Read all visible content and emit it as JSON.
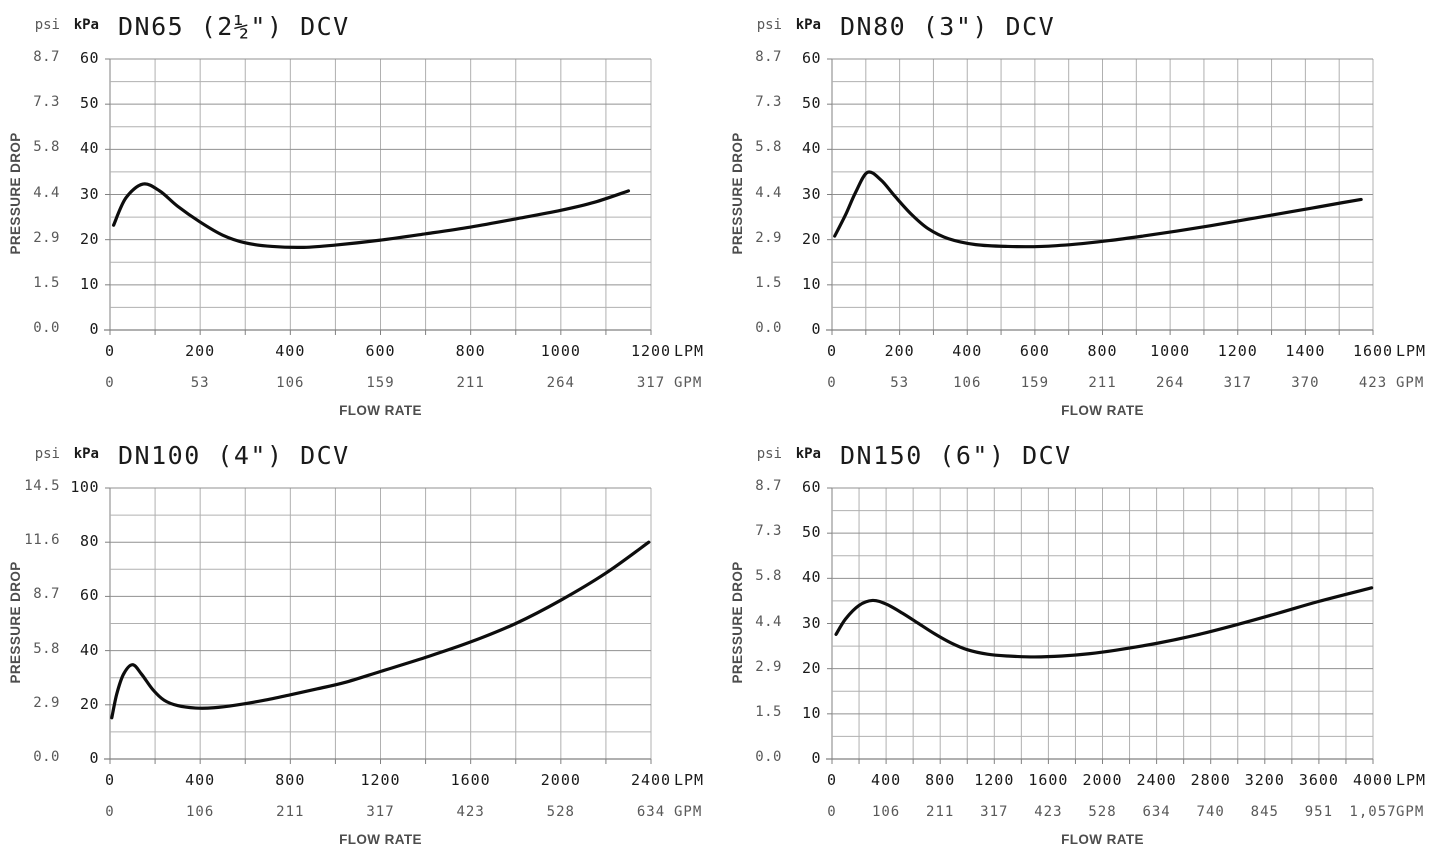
{
  "page": {
    "background": "#ffffff"
  },
  "colors": {
    "curve": "#0d0d0d",
    "grid_minor": "#b0b0b0",
    "grid_major": "#909090",
    "axis": "#808080",
    "text_dark": "#1a1a1a",
    "text_gray": "#595959"
  },
  "chart_data": [
    {
      "id": "dn65",
      "type": "line",
      "title": "DN65 (2½\") DCV",
      "ylabel": "PRESSURE DROP",
      "xlabel": "FLOW RATE",
      "y_axis": {
        "unit_secondary": "psi",
        "unit_primary": "kPa",
        "max": 60,
        "minor_step": 5,
        "major_step": 10,
        "ticks": [
          {
            "v": 0,
            "kpa": "0",
            "psi": "0.0"
          },
          {
            "v": 10,
            "kpa": "10",
            "psi": "1.5"
          },
          {
            "v": 20,
            "kpa": "20",
            "psi": "2.9"
          },
          {
            "v": 30,
            "kpa": "30",
            "psi": "4.4"
          },
          {
            "v": 40,
            "kpa": "40",
            "psi": "5.8"
          },
          {
            "v": 50,
            "kpa": "50",
            "psi": "7.3"
          },
          {
            "v": 60,
            "kpa": "60",
            "psi": "8.7"
          }
        ]
      },
      "x_axis": {
        "unit_primary": "LPM",
        "unit_secondary": "GPM",
        "max": 1200,
        "minor_step": 100,
        "ticks": [
          {
            "v": 0,
            "lpm": "0",
            "gpm": "0"
          },
          {
            "v": 200,
            "lpm": "200",
            "gpm": "53"
          },
          {
            "v": 400,
            "lpm": "400",
            "gpm": "106"
          },
          {
            "v": 600,
            "lpm": "600",
            "gpm": "159"
          },
          {
            "v": 800,
            "lpm": "800",
            "gpm": "211"
          },
          {
            "v": 1000,
            "lpm": "1000",
            "gpm": "264"
          },
          {
            "v": 1200,
            "lpm": "1200",
            "gpm": "317"
          }
        ]
      },
      "series": [
        {
          "name": "pressure-drop-curve",
          "points_lpm_kpa": [
            [
              8,
              23.2
            ],
            [
              35,
              29.2
            ],
            [
              73,
              32.3
            ],
            [
              110,
              30.8
            ],
            [
              150,
              27.4
            ],
            [
              200,
              23.9
            ],
            [
              250,
              21.0
            ],
            [
              300,
              19.3
            ],
            [
              360,
              18.5
            ],
            [
              430,
              18.3
            ],
            [
              500,
              18.8
            ],
            [
              600,
              19.9
            ],
            [
              700,
              21.3
            ],
            [
              800,
              22.8
            ],
            [
              900,
              24.6
            ],
            [
              1000,
              26.5
            ],
            [
              1075,
              28.3
            ],
            [
              1150,
              30.8
            ]
          ]
        }
      ]
    },
    {
      "id": "dn80",
      "type": "line",
      "title": "DN80 (3\") DCV",
      "ylabel": "PRESSURE DROP",
      "xlabel": "FLOW RATE",
      "y_axis": {
        "unit_secondary": "psi",
        "unit_primary": "kPa",
        "max": 60,
        "minor_step": 5,
        "major_step": 10,
        "ticks": [
          {
            "v": 0,
            "kpa": "0",
            "psi": "0.0"
          },
          {
            "v": 10,
            "kpa": "10",
            "psi": "1.5"
          },
          {
            "v": 20,
            "kpa": "20",
            "psi": "2.9"
          },
          {
            "v": 30,
            "kpa": "30",
            "psi": "4.4"
          },
          {
            "v": 40,
            "kpa": "40",
            "psi": "5.8"
          },
          {
            "v": 50,
            "kpa": "50",
            "psi": "7.3"
          },
          {
            "v": 60,
            "kpa": "60",
            "psi": "8.7"
          }
        ]
      },
      "x_axis": {
        "unit_primary": "LPM",
        "unit_secondary": "GPM",
        "max": 1600,
        "minor_step": 100,
        "ticks": [
          {
            "v": 0,
            "lpm": "0",
            "gpm": "0"
          },
          {
            "v": 200,
            "lpm": "200",
            "gpm": "53"
          },
          {
            "v": 400,
            "lpm": "400",
            "gpm": "106"
          },
          {
            "v": 600,
            "lpm": "600",
            "gpm": "159"
          },
          {
            "v": 800,
            "lpm": "800",
            "gpm": "211"
          },
          {
            "v": 1000,
            "lpm": "1000",
            "gpm": "264"
          },
          {
            "v": 1200,
            "lpm": "1200",
            "gpm": "317"
          },
          {
            "v": 1400,
            "lpm": "1400",
            "gpm": "370"
          },
          {
            "v": 1600,
            "lpm": "1600",
            "gpm": "423"
          }
        ]
      },
      "series": [
        {
          "name": "pressure-drop-curve",
          "points_lpm_kpa": [
            [
              8,
              20.8
            ],
            [
              40,
              25.5
            ],
            [
              70,
              30.5
            ],
            [
              105,
              34.9
            ],
            [
              145,
              33.2
            ],
            [
              185,
              29.7
            ],
            [
              235,
              25.6
            ],
            [
              285,
              22.4
            ],
            [
              345,
              20.2
            ],
            [
              425,
              18.9
            ],
            [
              520,
              18.5
            ],
            [
              620,
              18.5
            ],
            [
              720,
              19.0
            ],
            [
              820,
              19.8
            ],
            [
              920,
              20.8
            ],
            [
              1020,
              21.9
            ],
            [
              1120,
              23.1
            ],
            [
              1220,
              24.4
            ],
            [
              1320,
              25.7
            ],
            [
              1420,
              27.0
            ],
            [
              1510,
              28.2
            ],
            [
              1565,
              28.9
            ]
          ]
        }
      ]
    },
    {
      "id": "dn100",
      "type": "line",
      "title": "DN100 (4\") DCV",
      "ylabel": "PRESSURE DROP",
      "xlabel": "FLOW RATE",
      "y_axis": {
        "unit_secondary": "psi",
        "unit_primary": "kPa",
        "max": 100,
        "minor_step": 10,
        "major_step": 20,
        "ticks": [
          {
            "v": 0,
            "kpa": "0",
            "psi": "0.0"
          },
          {
            "v": 20,
            "kpa": "20",
            "psi": "2.9"
          },
          {
            "v": 40,
            "kpa": "40",
            "psi": "5.8"
          },
          {
            "v": 60,
            "kpa": "60",
            "psi": "8.7"
          },
          {
            "v": 80,
            "kpa": "80",
            "psi": "11.6"
          },
          {
            "v": 100,
            "kpa": "100",
            "psi": "14.5"
          }
        ]
      },
      "x_axis": {
        "unit_primary": "LPM",
        "unit_secondary": "GPM",
        "max": 2400,
        "minor_step": 200,
        "ticks": [
          {
            "v": 0,
            "lpm": "0",
            "gpm": "0"
          },
          {
            "v": 400,
            "lpm": "400",
            "gpm": "106"
          },
          {
            "v": 800,
            "lpm": "800",
            "gpm": "211"
          },
          {
            "v": 1200,
            "lpm": "1200",
            "gpm": "317"
          },
          {
            "v": 1600,
            "lpm": "1600",
            "gpm": "423"
          },
          {
            "v": 2000,
            "lpm": "2000",
            "gpm": "528"
          },
          {
            "v": 2400,
            "lpm": "2400",
            "gpm": "634"
          }
        ]
      },
      "series": [
        {
          "name": "pressure-drop-curve",
          "points_lpm_kpa": [
            [
              8,
              15.2
            ],
            [
              30,
              24.0
            ],
            [
              60,
              31.3
            ],
            [
              100,
              34.8
            ],
            [
              140,
              31.3
            ],
            [
              190,
              25.6
            ],
            [
              240,
              21.7
            ],
            [
              300,
              19.7
            ],
            [
              380,
              18.8
            ],
            [
              460,
              18.9
            ],
            [
              560,
              19.9
            ],
            [
              680,
              21.6
            ],
            [
              800,
              23.7
            ],
            [
              920,
              25.9
            ],
            [
              1040,
              28.2
            ],
            [
              1200,
              32.3
            ],
            [
              1400,
              37.5
            ],
            [
              1600,
              43.2
            ],
            [
              1800,
              50.0
            ],
            [
              2000,
              58.6
            ],
            [
              2200,
              68.6
            ],
            [
              2390,
              80.0
            ]
          ]
        }
      ]
    },
    {
      "id": "dn150",
      "type": "line",
      "title": "DN150 (6\") DCV",
      "ylabel": "PRESSURE DROP",
      "xlabel": "FLOW RATE",
      "y_axis": {
        "unit_secondary": "psi",
        "unit_primary": "kPa",
        "max": 60,
        "minor_step": 5,
        "major_step": 10,
        "ticks": [
          {
            "v": 0,
            "kpa": "0",
            "psi": "0.0"
          },
          {
            "v": 10,
            "kpa": "10",
            "psi": "1.5"
          },
          {
            "v": 20,
            "kpa": "20",
            "psi": "2.9"
          },
          {
            "v": 30,
            "kpa": "30",
            "psi": "4.4"
          },
          {
            "v": 40,
            "kpa": "40",
            "psi": "5.8"
          },
          {
            "v": 50,
            "kpa": "50",
            "psi": "7.3"
          },
          {
            "v": 60,
            "kpa": "60",
            "psi": "8.7"
          }
        ]
      },
      "x_axis": {
        "unit_primary": "LPM",
        "unit_secondary": "GPM",
        "max": 4000,
        "minor_step": 200,
        "ticks": [
          {
            "v": 0,
            "lpm": "0",
            "gpm": "0"
          },
          {
            "v": 400,
            "lpm": "400",
            "gpm": "106"
          },
          {
            "v": 800,
            "lpm": "800",
            "gpm": "211"
          },
          {
            "v": 1200,
            "lpm": "1200",
            "gpm": "317"
          },
          {
            "v": 1600,
            "lpm": "1600",
            "gpm": "423"
          },
          {
            "v": 2000,
            "lpm": "2000",
            "gpm": "528"
          },
          {
            "v": 2400,
            "lpm": "2400",
            "gpm": "634"
          },
          {
            "v": 2800,
            "lpm": "2800",
            "gpm": "740"
          },
          {
            "v": 3200,
            "lpm": "3200",
            "gpm": "845"
          },
          {
            "v": 3600,
            "lpm": "3600",
            "gpm": "951"
          },
          {
            "v": 4000,
            "lpm": "4000",
            "gpm": "1,057"
          }
        ]
      },
      "series": [
        {
          "name": "pressure-drop-curve",
          "points_lpm_kpa": [
            [
              30,
              27.6
            ],
            [
              100,
              31.0
            ],
            [
              200,
              34.0
            ],
            [
              300,
              35.1
            ],
            [
              400,
              34.3
            ],
            [
              520,
              32.3
            ],
            [
              640,
              30.0
            ],
            [
              760,
              27.7
            ],
            [
              880,
              25.7
            ],
            [
              1000,
              24.2
            ],
            [
              1150,
              23.2
            ],
            [
              1300,
              22.8
            ],
            [
              1500,
              22.6
            ],
            [
              1700,
              22.8
            ],
            [
              1900,
              23.3
            ],
            [
              2100,
              24.1
            ],
            [
              2400,
              25.6
            ],
            [
              2700,
              27.5
            ],
            [
              3000,
              29.8
            ],
            [
              3300,
              32.3
            ],
            [
              3600,
              34.9
            ],
            [
              3990,
              37.9
            ]
          ]
        }
      ]
    }
  ]
}
